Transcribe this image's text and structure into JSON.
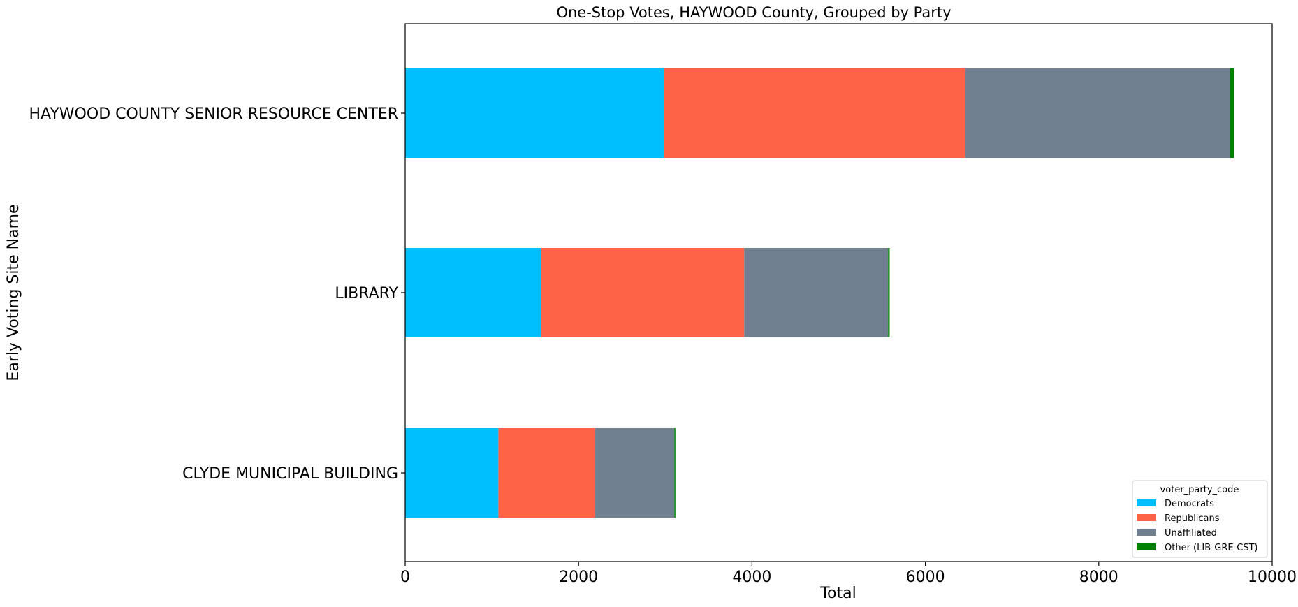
{
  "chart_data": {
    "type": "bar",
    "orientation": "horizontal",
    "stacked": true,
    "title": "One-Stop Votes, HAYWOOD County, Grouped by Party",
    "xlabel": "Total",
    "ylabel": "Early Voting Site Name",
    "xlim": [
      0,
      10000
    ],
    "xticks": [
      0,
      2000,
      4000,
      6000,
      8000,
      10000
    ],
    "grid": false,
    "categories": [
      "CLYDE MUNICIPAL BUILDING",
      "LIBRARY",
      "HAYWOOD COUNTY SENIOR RESOURCE CENTER"
    ],
    "series": [
      {
        "name": "Democrats",
        "color": "#00bfff",
        "values": [
          1075,
          1570,
          2985
        ]
      },
      {
        "name": "Republicans",
        "color": "#ff6347",
        "values": [
          1115,
          2340,
          3475
        ]
      },
      {
        "name": "Unaffiliated",
        "color": "#708090",
        "values": [
          915,
          1660,
          3055
        ]
      },
      {
        "name": "Other (LIB-GRE-CST)",
        "color": "#008000",
        "values": [
          12,
          18,
          45
        ]
      }
    ],
    "legend": {
      "title": "voter_party_code",
      "placement": "lower-right"
    }
  }
}
